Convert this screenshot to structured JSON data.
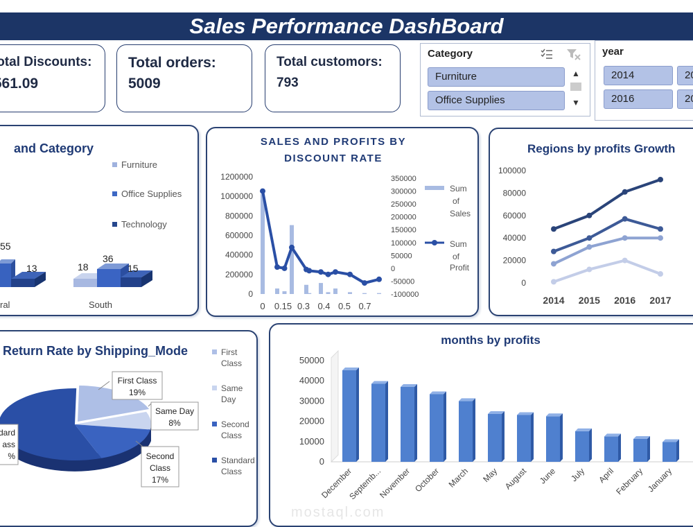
{
  "header": {
    "title": "Sales Performance DashBoard"
  },
  "kpis": [
    {
      "label": "Total Discounts:",
      "value": ",561.09"
    },
    {
      "label": "Total orders:",
      "value": "5009"
    },
    {
      "label": "Total customors:",
      "value": "793"
    }
  ],
  "category_slicer": {
    "title": "Category",
    "items": [
      "Furniture",
      "Office Supplies"
    ]
  },
  "year_slicer": {
    "title": "year",
    "items": [
      "2014",
      "2016"
    ]
  },
  "colors": {
    "navy": "#1c3566",
    "dark": "#2a4a8c",
    "mid": "#3e6ac9",
    "light": "#8ea8d8",
    "pale": "#b9c9e8"
  },
  "charts": {
    "region_category": {
      "title": "and Category",
      "legend": [
        "Furniture",
        "Office Supplies",
        "Technology"
      ],
      "labels": [
        "55",
        "13",
        "18",
        "36",
        "15"
      ],
      "categories": [
        "ral",
        "South"
      ]
    },
    "discount": {
      "title_line1": "SALES AND PROFITS BY",
      "title_line2": "DISCOUNT RATE",
      "left_ticks": [
        "1200000",
        "1000000",
        "800000",
        "600000",
        "400000",
        "200000",
        "0"
      ],
      "right_ticks": [
        "350000",
        "300000",
        "250000",
        "200000",
        "150000",
        "100000",
        "50000",
        "0",
        "-50000",
        "-100000"
      ],
      "x_ticks": [
        "0",
        "0.15",
        "0.3",
        "0.4",
        "0.5",
        "0.7"
      ],
      "legend_sales": [
        "Sum",
        "of",
        "Sales"
      ],
      "legend_profit": [
        "Sum",
        "of",
        "Profit"
      ]
    },
    "regions_growth": {
      "title": "Regions by profits Growth",
      "y_ticks": [
        "100000",
        "80000",
        "60000",
        "40000",
        "20000",
        "0"
      ],
      "x_ticks": [
        "2014",
        "2015",
        "2016",
        "2017"
      ]
    },
    "return_rate": {
      "title": "Return Rate by Shipping_Mode",
      "legend": [
        [
          "First",
          "Class"
        ],
        [
          "Same",
          "Day"
        ],
        [
          "Second",
          "Class"
        ],
        [
          "Standard",
          "Class"
        ]
      ],
      "labels": [
        [
          "First Class",
          "19%"
        ],
        [
          "Same Day",
          "8%"
        ],
        [
          "Second",
          "Class",
          "17%"
        ],
        [
          "dard",
          "ass",
          "%"
        ]
      ]
    },
    "months": {
      "title": "months by profits",
      "y_ticks": [
        "50000",
        "40000",
        "30000",
        "20000",
        "10000",
        "0"
      ],
      "x_labels": [
        "December",
        "Septemb...",
        "November",
        "October",
        "March",
        "May",
        "August",
        "June",
        "July",
        "April",
        "February",
        "January"
      ]
    }
  },
  "chart_data": [
    {
      "type": "bar",
      "title": "and Category",
      "categories": [
        "ral",
        "South"
      ],
      "series": [
        {
          "name": "Furniture",
          "values": [
            null,
            18
          ]
        },
        {
          "name": "Office Supplies",
          "values": [
            55,
            36
          ]
        },
        {
          "name": "Technology",
          "values": [
            13,
            15
          ]
        }
      ]
    },
    {
      "type": "line",
      "title": "SALES AND PROFITS BY DISCOUNT RATE",
      "x": [
        0,
        0.1,
        0.15,
        0.2,
        0.3,
        0.32,
        0.4,
        0.45,
        0.5,
        0.6,
        0.7,
        0.8
      ],
      "series": [
        {
          "name": "Sum of Sales",
          "values": [
            1090000,
            60000,
            30000,
            750000,
            100000,
            10000,
            120000,
            20000,
            60000,
            20000,
            10000,
            10000
          ],
          "axis": "left"
        },
        {
          "name": "Sum of Profit",
          "values": [
            320000,
            10000,
            5000,
            90000,
            0,
            -5000,
            -10000,
            -20000,
            -10000,
            -20000,
            -55000,
            -40000
          ],
          "axis": "right"
        }
      ],
      "ylim": [
        0,
        1200000
      ],
      "y2lim": [
        -100000,
        350000
      ]
    },
    {
      "type": "line",
      "title": "Regions by profits Growth",
      "x": [
        2014,
        2015,
        2016,
        2017
      ],
      "series": [
        {
          "values": [
            48000,
            60000,
            81000,
            92000
          ]
        },
        {
          "values": [
            28000,
            40000,
            57000,
            48000
          ]
        },
        {
          "values": [
            17000,
            32000,
            40000,
            40000
          ]
        },
        {
          "values": [
            1000,
            12000,
            20000,
            8000
          ]
        }
      ],
      "ylim": [
        0,
        100000
      ]
    },
    {
      "type": "pie",
      "title": "Return Rate by Shipping_Mode",
      "categories": [
        "First Class",
        "Same Day",
        "Second Class",
        "Standard Class"
      ],
      "values": [
        19,
        8,
        17,
        56
      ]
    },
    {
      "type": "bar",
      "title": "months by profits",
      "categories": [
        "December",
        "Septemb...",
        "November",
        "October",
        "March",
        "May",
        "August",
        "June",
        "July",
        "April",
        "February",
        "January"
      ],
      "values": [
        44000,
        37500,
        36000,
        32500,
        29200,
        23000,
        22500,
        21900,
        14700,
        12200,
        11000,
        9500
      ],
      "ylim": [
        0,
        50000
      ]
    }
  ]
}
